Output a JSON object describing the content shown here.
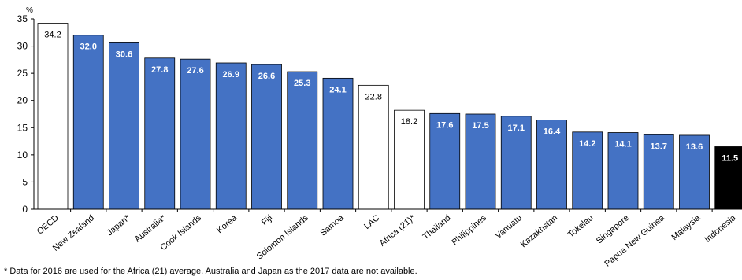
{
  "chart_data": {
    "type": "bar",
    "unit_label": "%",
    "ylim": [
      0,
      35
    ],
    "yticks": [
      0,
      5,
      10,
      15,
      20,
      25,
      30,
      35
    ],
    "grid": false,
    "legend": "none",
    "categories": [
      "OECD",
      "New Zealand",
      "Japan*",
      "Australia*",
      "Cook Islands",
      "Korea",
      "Fiji",
      "Solomon Islands",
      "Samoa",
      "LAC",
      "Africa (21)*",
      "Thailand",
      "Philippines",
      "Vanuatu",
      "Kazakhstan",
      "Tokelau",
      "Singapore",
      "Papua New Guinea",
      "Malaysia",
      "Indonesia"
    ],
    "values": [
      34.2,
      32.0,
      30.6,
      27.8,
      27.6,
      26.9,
      26.6,
      25.3,
      24.1,
      22.8,
      18.2,
      17.6,
      17.5,
      17.1,
      16.4,
      14.2,
      14.1,
      13.7,
      13.6,
      11.5
    ],
    "value_labels": [
      "34.2",
      "32.0",
      "30.6",
      "27.8",
      "27.6",
      "26.9",
      "26.6",
      "25.3",
      "24.1",
      "22.8",
      "18.2",
      "17.6",
      "17.5",
      "17.1",
      "16.4",
      "14.2",
      "14.1",
      "13.7",
      "13.6",
      "11.5"
    ],
    "bar_styles": [
      "benchmark",
      "country",
      "country",
      "country",
      "country",
      "country",
      "country",
      "country",
      "country",
      "benchmark",
      "benchmark",
      "country",
      "country",
      "country",
      "country",
      "country",
      "country",
      "country",
      "country",
      "highlight"
    ],
    "colors": {
      "country": "#4472c4",
      "benchmark": "#ffffff",
      "highlight": "#000000",
      "outline": "#000000",
      "label_on_dark": "#ffffff",
      "label_on_light": "#000000"
    }
  },
  "footnote": "* Data for 2016 are used for the Africa (21) average, Australia and Japan as the 2017 data are not available."
}
